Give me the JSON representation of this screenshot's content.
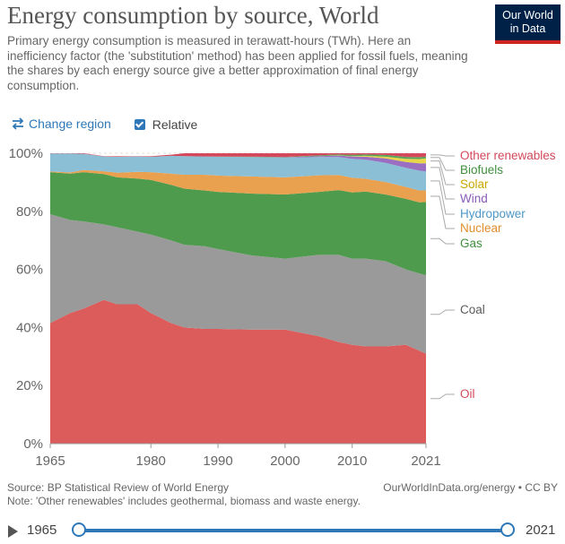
{
  "header": {
    "title": "Energy consumption by source, World",
    "subtitle": "Primary energy consumption is measured in terawatt-hours (TWh). Here an inefficiency factor (the 'substitution' method) has been applied for fossil fuels, meaning the shares by each energy source give a better approximation of final energy consumption.",
    "logo_line1": "Our World",
    "logo_line2": "in Data"
  },
  "controls": {
    "change_region_label": "Change region",
    "change_region_icon": "swap-arrows-icon",
    "relative_label": "Relative",
    "relative_checked": true
  },
  "chart_data": {
    "type": "area",
    "stacked": true,
    "relative": true,
    "x": [
      1965,
      1968,
      1970,
      1973,
      1975,
      1978,
      1980,
      1983,
      1985,
      1988,
      1990,
      1995,
      2000,
      2005,
      2008,
      2010,
      2012,
      2015,
      2018,
      2020,
      2021
    ],
    "series": [
      {
        "name": "Oil",
        "color": "#dc5b5b",
        "values": [
          41.5,
          45,
          46.5,
          49.5,
          48,
          48,
          45,
          41.5,
          40,
          39.5,
          39.5,
          39.3,
          39.3,
          37,
          35,
          34,
          33.5,
          33.5,
          34,
          32,
          31
        ]
      },
      {
        "name": "Coal",
        "color": "#9a9a9a",
        "values": [
          37.5,
          32,
          30,
          26,
          26.5,
          25,
          27,
          28.5,
          28.5,
          28.5,
          27.5,
          25.5,
          24.4,
          28,
          30,
          29.7,
          30.2,
          29.3,
          26,
          26.6,
          27
        ]
      },
      {
        "name": "Gas",
        "color": "#4e9b4e",
        "values": [
          14.5,
          16,
          17,
          17.3,
          17.2,
          18.3,
          18.8,
          19.1,
          19.3,
          19.2,
          19.7,
          21.3,
          22.1,
          21.7,
          22.3,
          22.8,
          23.1,
          23,
          24.3,
          24.5,
          25.2
        ]
      },
      {
        "name": "Nuclear",
        "color": "#e9a04f",
        "values": [
          0.2,
          0.4,
          0.7,
          1.0,
          1.6,
          2.3,
          2.7,
          3.9,
          4.8,
          5.4,
          5.6,
          5.9,
          5.9,
          5.7,
          5.2,
          5.1,
          4.4,
          4.3,
          4.1,
          4.1,
          4
        ]
      },
      {
        "name": "Hydropower",
        "color": "#8abfd6",
        "values": [
          6.2,
          6.5,
          5.6,
          5.1,
          5.5,
          5.3,
          5.3,
          6.1,
          6.4,
          6.3,
          6.5,
          6.7,
          6.8,
          6.3,
          6.2,
          6.5,
          6.6,
          6.6,
          6.6,
          6.8,
          6.5
        ]
      },
      {
        "name": "Wind",
        "color": "#9a6ec1",
        "values": [
          0,
          0,
          0,
          0,
          0,
          0,
          0,
          0,
          0,
          0,
          0,
          0,
          0.1,
          0.3,
          0.5,
          0.8,
          1.0,
          1.5,
          2.0,
          2.5,
          2.8
        ]
      },
      {
        "name": "Solar",
        "color": "#e8d64a",
        "values": [
          0,
          0,
          0,
          0,
          0,
          0,
          0,
          0,
          0,
          0,
          0,
          0,
          0,
          0,
          0.05,
          0.1,
          0.3,
          0.6,
          1.1,
          1.5,
          1.7
        ]
      },
      {
        "name": "Biofuels",
        "color": "#5aa35a",
        "values": [
          0,
          0,
          0,
          0,
          0,
          0,
          0,
          0,
          0,
          0,
          0.05,
          0.1,
          0.15,
          0.25,
          0.35,
          0.45,
          0.5,
          0.6,
          0.65,
          0.65,
          0.65
        ]
      },
      {
        "name": "Other renewables",
        "color": "#d3495b",
        "values": [
          0.1,
          0.1,
          0.2,
          0.1,
          0.2,
          0.1,
          0.2,
          0.4,
          1.0,
          1.1,
          1.15,
          1.2,
          1.25,
          0.75,
          0.4,
          0.55,
          0.4,
          0.6,
          1.25,
          1.35,
          1.15
        ]
      }
    ],
    "legend_order": [
      "Other renewables",
      "Biofuels",
      "Solar",
      "Wind",
      "Hydropower",
      "Nuclear",
      "Gas",
      "Coal",
      "Oil"
    ],
    "label_colors": {
      "Other renewables": "#d3495b",
      "Biofuels": "#3f8f3f",
      "Solar": "#c9a800",
      "Wind": "#8a5cb8",
      "Hydropower": "#4f97c6",
      "Nuclear": "#e08d2c",
      "Gas": "#3f8f3f",
      "Coal": "#5b5b5b",
      "Oil": "#d3495b"
    },
    "x_ticks": [
      "1965",
      "1980",
      "1990",
      "2000",
      "2010",
      "2021"
    ],
    "x_tick_values": [
      1965,
      1980,
      1990,
      2000,
      2010,
      2021
    ],
    "y_ticks": [
      "0%",
      "20%",
      "40%",
      "60%",
      "80%",
      "100%"
    ],
    "y_tick_values": [
      0,
      20,
      40,
      60,
      80,
      100
    ],
    "ylim": [
      0,
      100
    ],
    "xlim": [
      1965,
      2021
    ],
    "grid": true
  },
  "footer": {
    "source": "Source: BP Statistical Review of World Energy",
    "attribution": "OurWorldInData.org/energy • CC BY",
    "note": "Note: 'Other renewables' includes geothermal, biomass and waste energy."
  },
  "timeline": {
    "start_label": "1965",
    "end_label": "2021"
  }
}
